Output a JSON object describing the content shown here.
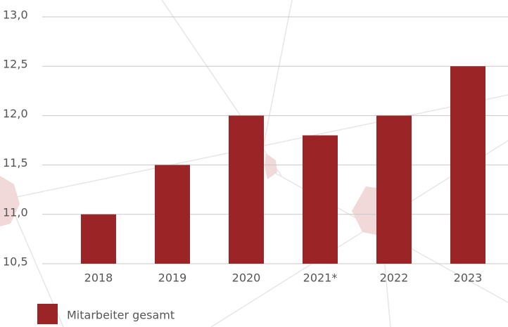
{
  "chart_data": {
    "type": "bar",
    "categories": [
      "2018",
      "2019",
      "2020",
      "2021*",
      "2022",
      "2023"
    ],
    "series": [
      {
        "name": "Mitarbeiter gesamt",
        "color": "#9b2427",
        "values": [
          11.0,
          11.5,
          12.0,
          11.8,
          12.0,
          12.5
        ]
      }
    ],
    "ylim": [
      10.5,
      13.0
    ],
    "yticks": [
      {
        "value": 10.5,
        "label": "10,5"
      },
      {
        "value": 11.0,
        "label": "11,0"
      },
      {
        "value": 11.5,
        "label": "11,5"
      },
      {
        "value": 12.0,
        "label": "12,0"
      },
      {
        "value": 12.5,
        "label": "12,5"
      },
      {
        "value": 13.0,
        "label": "13,0"
      }
    ],
    "grid": true,
    "legend": "bottom-left"
  }
}
